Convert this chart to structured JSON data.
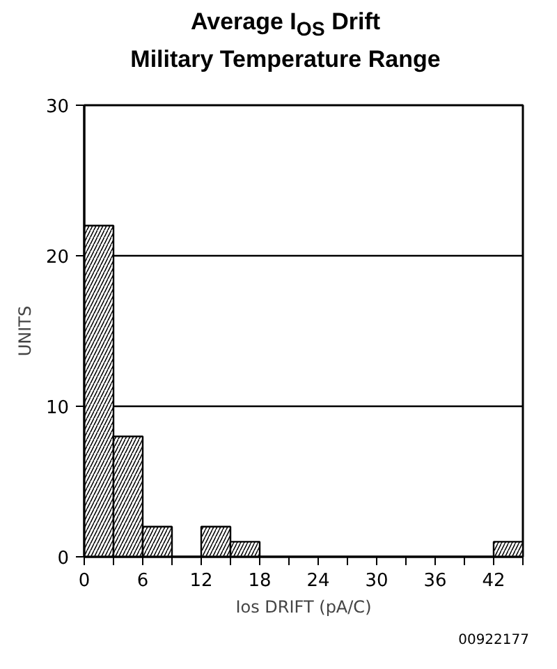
{
  "chart_data": {
    "type": "histogram",
    "title": "Average I$_{OS}$ Drift\nMilitary Temperature Range",
    "xlabel": "Ios DRIFT (pA/C)",
    "ylabel": "UNITS",
    "bins": [
      0,
      3,
      6,
      9,
      12,
      15,
      18,
      21,
      24,
      27,
      30,
      33,
      36,
      39,
      42,
      45
    ],
    "values": [
      22,
      8,
      2,
      0,
      2,
      1,
      0,
      0,
      0,
      0,
      0,
      0,
      0,
      0,
      1
    ],
    "color": "#000000",
    "xlim": [
      0,
      45
    ],
    "xticks": [
      0,
      {
        "value": 3,
        "label": null
      },
      6,
      {
        "value": 9,
        "label": null
      },
      12,
      {
        "value": 15,
        "label": null
      },
      18,
      {
        "value": 21,
        "label": null
      },
      24,
      {
        "value": 27,
        "label": null
      },
      30,
      {
        "value": 33,
        "label": null
      },
      36,
      {
        "value": 39,
        "label": null
      },
      42,
      {
        "value": 45,
        "label": null
      }
    ],
    "ylim": [
      0,
      30
    ],
    "yticks": [
      0,
      10,
      20,
      30
    ],
    "grid": "y",
    "annotations": [
      "00922177"
    ]
  }
}
